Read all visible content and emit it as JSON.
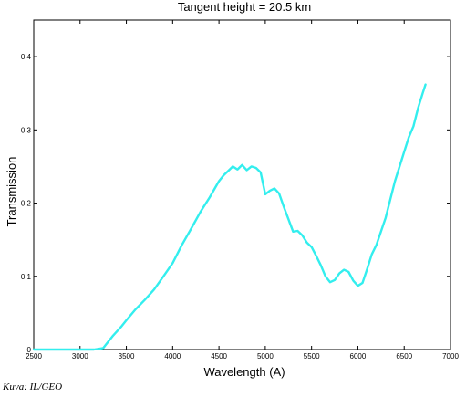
{
  "chart_data": {
    "type": "line",
    "title": "Tangent height = 20.5 km",
    "xlabel": "Wavelength (A)",
    "ylabel": "Transmission",
    "xlim": [
      2500,
      7000
    ],
    "ylim": [
      0,
      0.45
    ],
    "xticks": [
      2500,
      3000,
      3500,
      4000,
      4500,
      5000,
      5500,
      6000,
      6500,
      7000
    ],
    "yticks": [
      0,
      0.1,
      0.2,
      0.3,
      0.4
    ],
    "ytick_labels": [
      "0",
      "0.1",
      "0.2",
      "0.3",
      "0.4"
    ],
    "grid": false,
    "line_color": "#33eeee",
    "series": [
      {
        "x": [
          2500,
          2800,
          3000,
          3150,
          3250,
          3300,
          3350,
          3400,
          3450,
          3500,
          3600,
          3700,
          3800,
          3900,
          4000,
          4100,
          4200,
          4300,
          4400,
          4500,
          4550,
          4600,
          4650,
          4700,
          4750,
          4800,
          4850,
          4900,
          4950,
          5000,
          5050,
          5100,
          5150,
          5200,
          5250,
          5300,
          5350,
          5400,
          5450,
          5500,
          5550,
          5600,
          5650,
          5700,
          5750,
          5800,
          5850,
          5900,
          5950,
          6000,
          6050,
          6100,
          6150,
          6200,
          6300,
          6400,
          6500,
          6550,
          6600,
          6650,
          6700,
          6730
        ],
        "y": [
          0,
          0,
          0,
          0,
          0.002,
          0.01,
          0.018,
          0.025,
          0.032,
          0.04,
          0.055,
          0.068,
          0.082,
          0.1,
          0.118,
          0.143,
          0.165,
          0.188,
          0.208,
          0.23,
          0.238,
          0.244,
          0.25,
          0.246,
          0.252,
          0.245,
          0.25,
          0.248,
          0.242,
          0.212,
          0.217,
          0.22,
          0.213,
          0.195,
          0.178,
          0.161,
          0.162,
          0.156,
          0.146,
          0.14,
          0.128,
          0.115,
          0.1,
          0.092,
          0.095,
          0.104,
          0.109,
          0.106,
          0.094,
          0.087,
          0.091,
          0.11,
          0.13,
          0.143,
          0.18,
          0.23,
          0.27,
          0.29,
          0.305,
          0.33,
          0.35,
          0.362
        ]
      }
    ]
  },
  "footer": {
    "credit": "Kuva: IL/GEO"
  }
}
